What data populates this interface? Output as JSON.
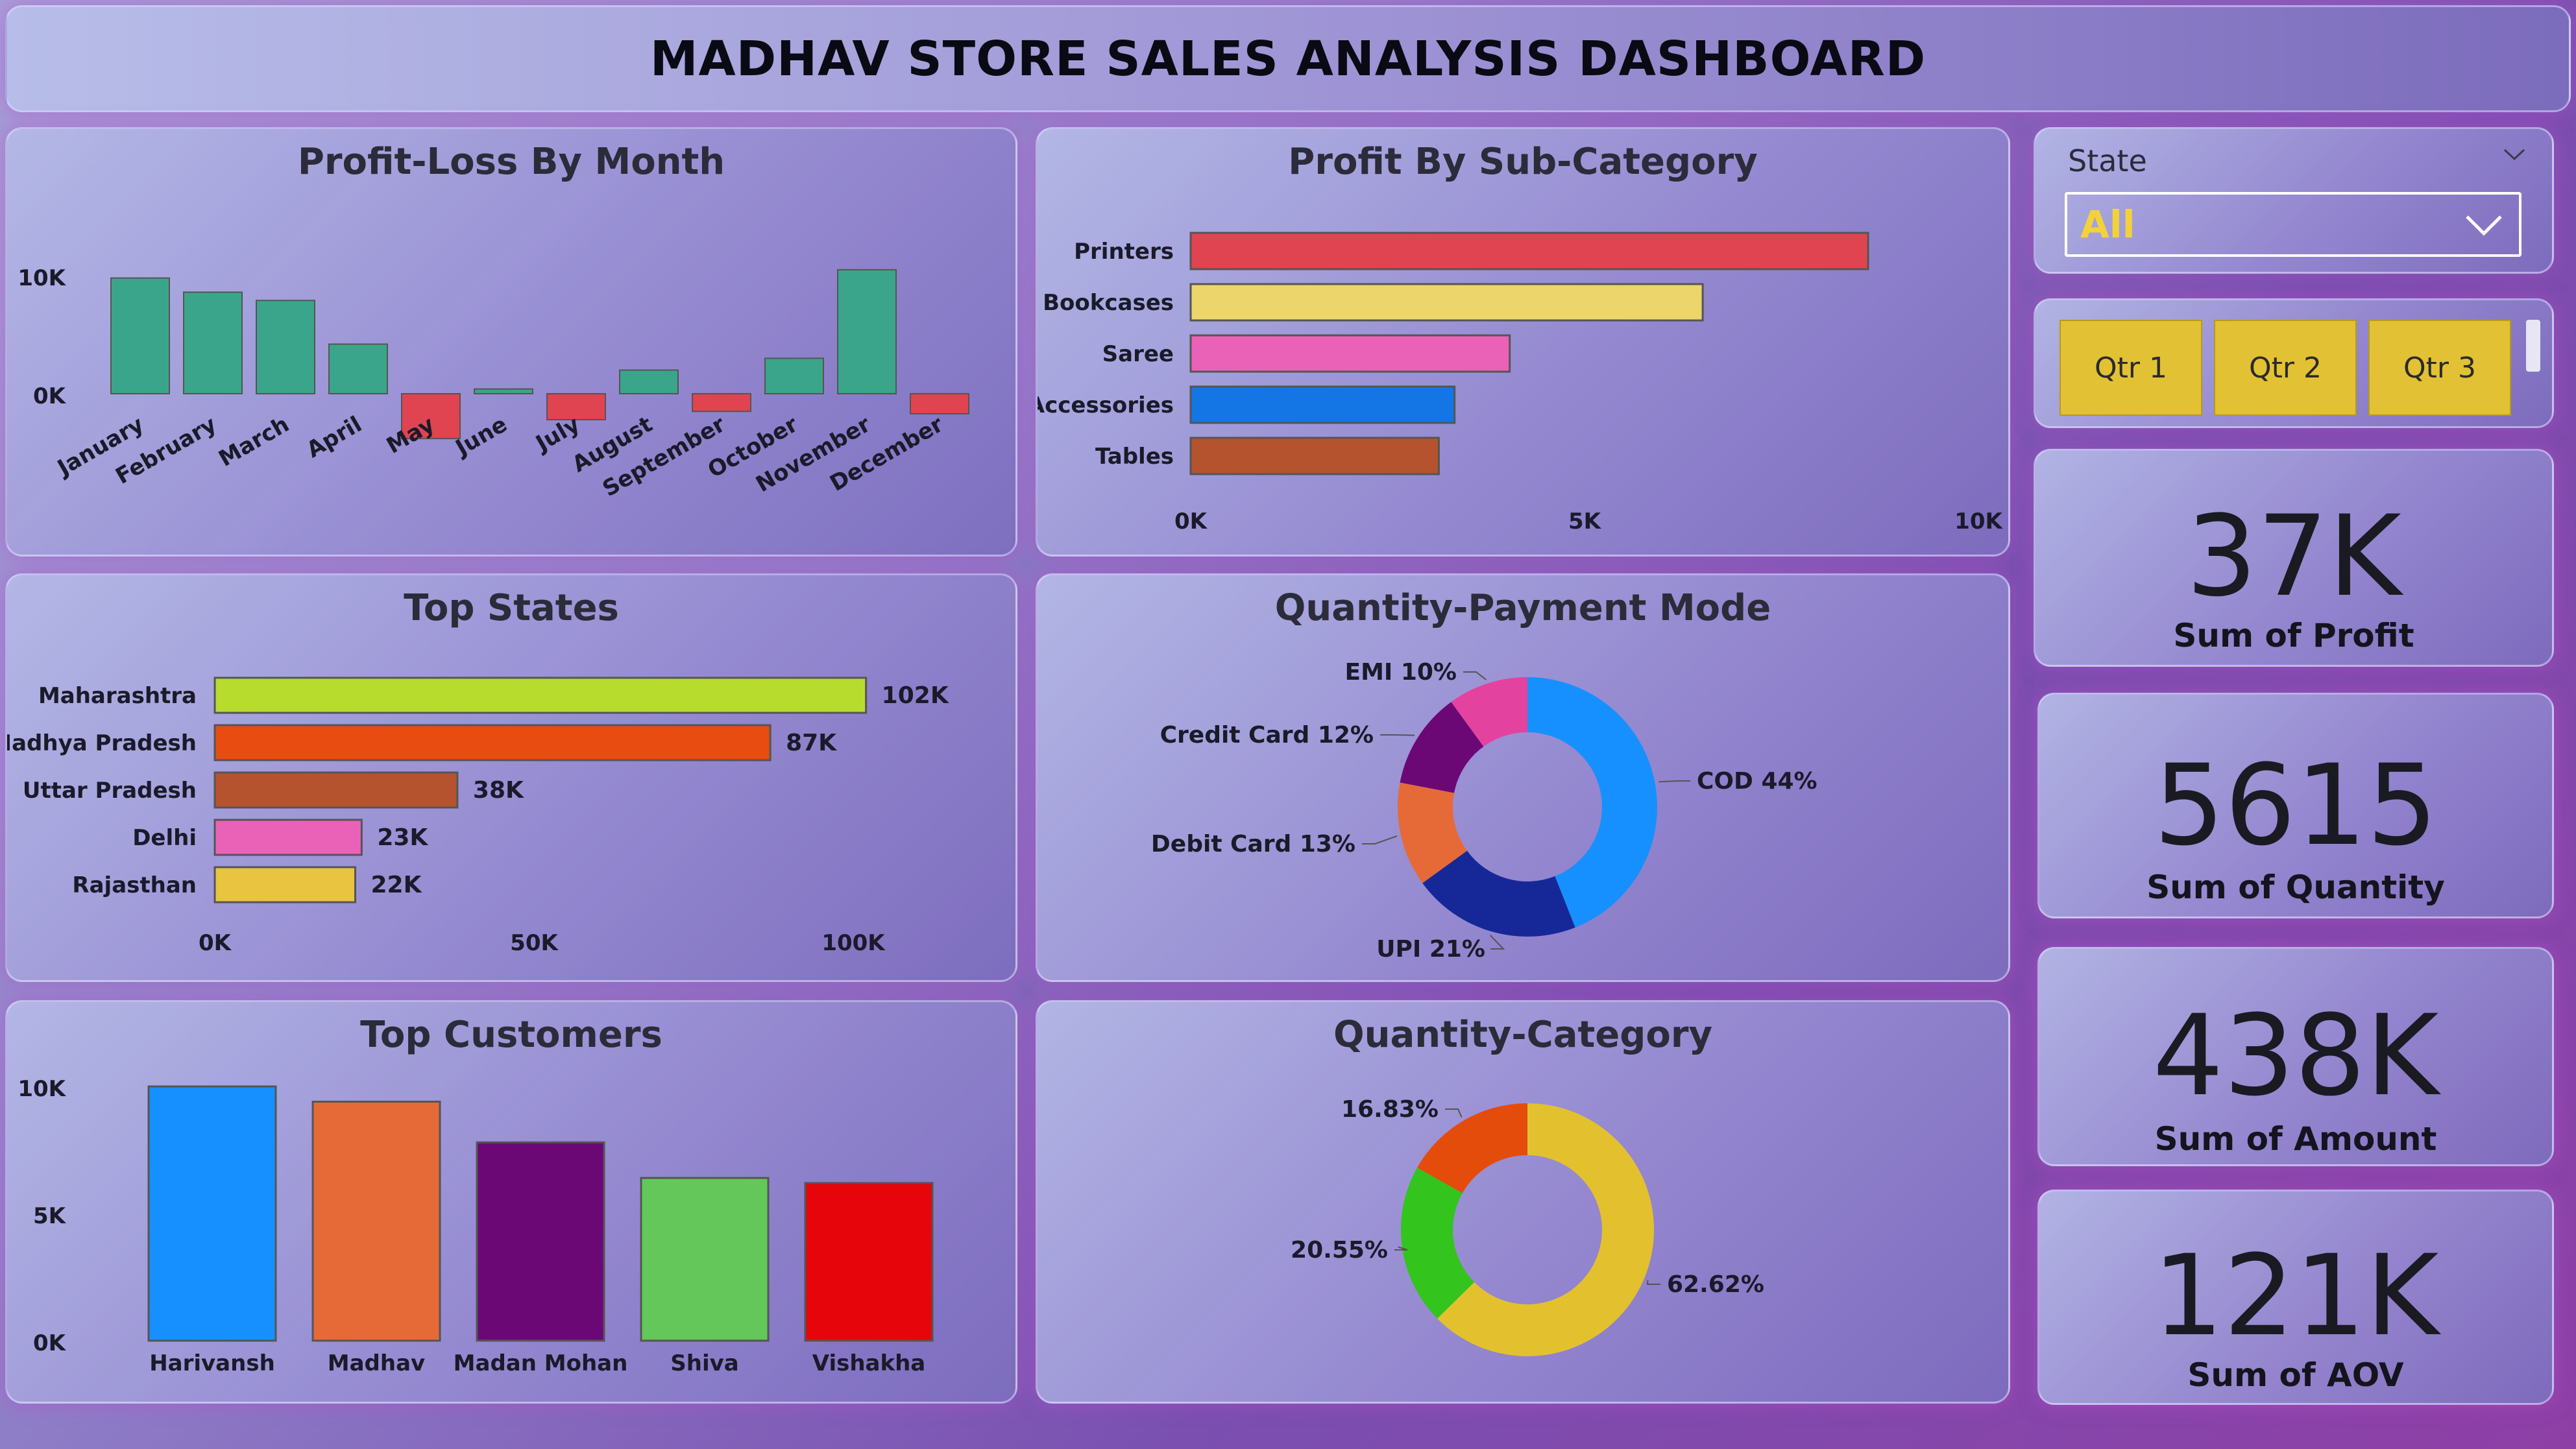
{
  "dashboard": {
    "title": "MADHAV STORE SALES ANALYSIS DASHBOARD"
  },
  "slicer": {
    "title": "State",
    "value": "All",
    "quarters": [
      "Qtr 1",
      "Qtr 2",
      "Qtr 3"
    ]
  },
  "kpis": [
    {
      "value": "37K",
      "label": "Sum of Profit"
    },
    {
      "value": "5615",
      "label": "Sum of Quantity"
    },
    {
      "value": "438K",
      "label": "Sum of Amount"
    },
    {
      "value": "121K",
      "label": "Sum of AOV"
    }
  ],
  "chart_data": [
    {
      "id": "profit_by_month",
      "type": "bar",
      "title": "Profit-Loss By Month",
      "categories": [
        "January",
        "February",
        "March",
        "April",
        "May",
        "June",
        "July",
        "August",
        "September",
        "October",
        "November",
        "December"
      ],
      "values": [
        9800,
        8600,
        7900,
        4200,
        -3800,
        400,
        -2200,
        2000,
        -1500,
        3000,
        10500,
        -1700
      ],
      "yticks": [
        0,
        10000
      ],
      "ytick_labels": [
        "0K",
        "10K"
      ],
      "colors": {
        "positive": "#3aa58a",
        "negative": "#e04450"
      }
    },
    {
      "id": "profit_by_subcategory",
      "type": "bar",
      "orientation": "horizontal",
      "title": "Profit By Sub-Category",
      "categories": [
        "Printers",
        "Bookcases",
        "Saree",
        "Accessories",
        "Tables"
      ],
      "values": [
        8600,
        6500,
        4050,
        3350,
        3150
      ],
      "xlim": [
        0,
        10000
      ],
      "xticks": [
        0,
        5000,
        10000
      ],
      "xtick_labels": [
        "0K",
        "5K",
        "10K"
      ],
      "colors": [
        "#e04450",
        "#ecd56a",
        "#ea62b8",
        "#1376e4",
        "#b5532f"
      ]
    },
    {
      "id": "top_states",
      "type": "bar",
      "orientation": "horizontal",
      "title": "Top States",
      "categories": [
        "Maharashtra",
        "Madhya Pradesh",
        "Uttar Pradesh",
        "Delhi",
        "Rajasthan"
      ],
      "values": [
        102000,
        87000,
        38000,
        23000,
        22000
      ],
      "data_labels": [
        "102K",
        "87K",
        "38K",
        "23K",
        "22K"
      ],
      "xticks": [
        0,
        50000,
        100000
      ],
      "xtick_labels": [
        "0K",
        "50K",
        "100K"
      ],
      "colors": [
        "#b7dc2e",
        "#e84c10",
        "#b5532f",
        "#ea62b8",
        "#e9c440"
      ]
    },
    {
      "id": "quantity_payment_mode",
      "type": "pie",
      "donut": true,
      "title": "Quantity-Payment Mode",
      "categories": [
        "COD",
        "UPI",
        "Debit Card",
        "Credit Card",
        "EMI"
      ],
      "values": [
        44,
        21,
        13,
        12,
        10
      ],
      "labels": [
        "COD 44%",
        "UPI 21%",
        "Debit Card 13%",
        "Credit Card 12%",
        "EMI 10%"
      ],
      "colors": [
        "#1690ff",
        "#162898",
        "#e66a38",
        "#6b0876",
        "#e3439e"
      ]
    },
    {
      "id": "top_customers",
      "type": "bar",
      "title": "Top Customers",
      "categories": [
        "Harivansh",
        "Madhav",
        "Madan Mohan",
        "Shiva",
        "Vishakha"
      ],
      "values": [
        10000,
        9400,
        7800,
        6400,
        6200
      ],
      "yticks": [
        0,
        5000,
        10000
      ],
      "ytick_labels": [
        "0K",
        "5K",
        "10K"
      ],
      "colors": [
        "#1690ff",
        "#e66a38",
        "#6b0876",
        "#63c75a",
        "#e6050a"
      ]
    },
    {
      "id": "quantity_category",
      "type": "pie",
      "donut": true,
      "title": "Quantity-Category",
      "values": [
        62.62,
        20.55,
        16.83
      ],
      "labels": [
        "62.62%",
        "20.55%",
        "16.83%"
      ],
      "colors": [
        "#e3c12e",
        "#33c41d",
        "#e44c0c"
      ]
    }
  ]
}
